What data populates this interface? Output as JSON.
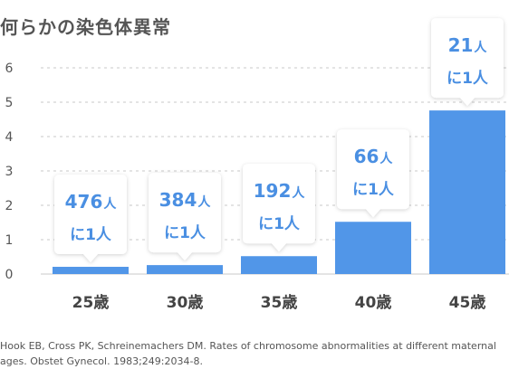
{
  "chart_data": {
    "type": "bar",
    "title": "何らかの染色体異常",
    "categories": [
      "25歳",
      "30歳",
      "35歳",
      "40歳",
      "45歳"
    ],
    "values": [
      0.21,
      0.26,
      0.52,
      1.52,
      4.76
    ],
    "ylim": [
      0,
      6
    ],
    "yticks": [
      "0",
      "1",
      "2",
      "3",
      "4",
      "5",
      "6"
    ],
    "grid": true,
    "annotations": [
      {
        "number": "476",
        "unit": "人",
        "line2": "に1人"
      },
      {
        "number": "384",
        "unit": "人",
        "line2": "に1人"
      },
      {
        "number": "192",
        "unit": "人",
        "line2": "に1人"
      },
      {
        "number": "66",
        "unit": "人",
        "line2": "に1人"
      },
      {
        "number": "21",
        "unit": "人",
        "line2": "に1人"
      }
    ],
    "source": "Hook EB, Cross PK, Schreinemachers DM. Rates of chromosome abnormalities at different maternal ages. Obstet Gynecol. 1983;249:2034-8."
  },
  "colors": {
    "bar": "#5196e8",
    "annotation_text": "#4a8fe2",
    "grid": "#c8c8c8",
    "axis_text": "#555555"
  }
}
